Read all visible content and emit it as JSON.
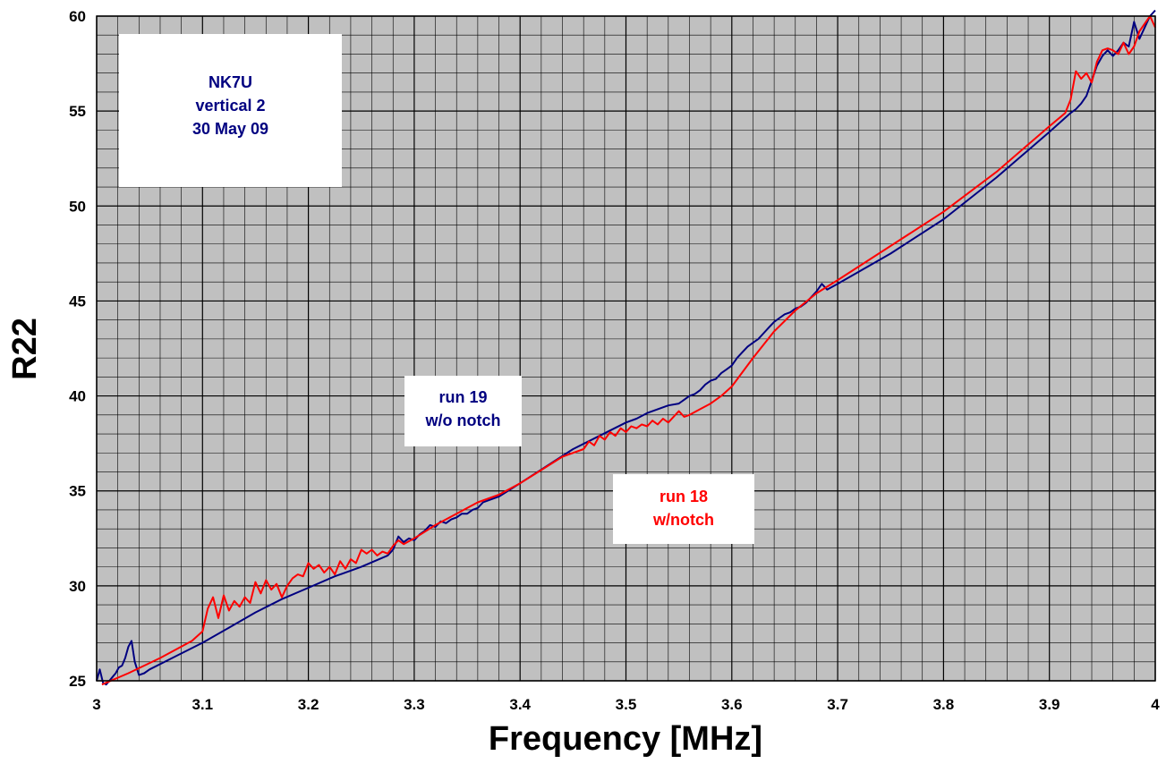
{
  "chart_data": {
    "type": "line",
    "title": "",
    "xlabel": "Frequency [MHz]",
    "ylabel": "R22",
    "xlim": [
      3,
      4
    ],
    "ylim": [
      25,
      60
    ],
    "x_ticks": [
      "3",
      "3.1",
      "3.2",
      "3.3",
      "3.4",
      "3.5",
      "3.6",
      "3.7",
      "3.8",
      "3.9",
      "4"
    ],
    "y_ticks": [
      "25",
      "30",
      "35",
      "40",
      "45",
      "50",
      "55",
      "60"
    ],
    "grid": true,
    "background": "#c0c0c0",
    "annotations": [
      {
        "lines": [
          "NK7U",
          "vertical 2",
          "30 May 09"
        ],
        "color": "#000080"
      },
      {
        "lines": [
          "run 19",
          "w/o notch"
        ],
        "color": "#000080"
      },
      {
        "lines": [
          "run 18",
          "w/notch"
        ],
        "color": "#ff0000"
      }
    ],
    "series": [
      {
        "name": "run 19 w/o notch",
        "color": "#000080",
        "x": [
          3.0,
          3.003,
          3.006,
          3.009,
          3.012,
          3.015,
          3.018,
          3.021,
          3.024,
          3.027,
          3.03,
          3.033,
          3.036,
          3.04,
          3.045,
          3.05,
          3.075,
          3.1,
          3.125,
          3.15,
          3.175,
          3.2,
          3.225,
          3.25,
          3.275,
          3.28,
          3.285,
          3.29,
          3.295,
          3.3,
          3.305,
          3.31,
          3.315,
          3.32,
          3.325,
          3.33,
          3.335,
          3.34,
          3.345,
          3.35,
          3.355,
          3.36,
          3.365,
          3.37,
          3.38,
          3.4,
          3.425,
          3.45,
          3.475,
          3.5,
          3.51,
          3.52,
          3.525,
          3.53,
          3.54,
          3.55,
          3.555,
          3.56,
          3.565,
          3.57,
          3.575,
          3.58,
          3.585,
          3.59,
          3.595,
          3.6,
          3.605,
          3.61,
          3.615,
          3.62,
          3.625,
          3.63,
          3.635,
          3.64,
          3.645,
          3.65,
          3.655,
          3.66,
          3.665,
          3.67,
          3.675,
          3.68,
          3.685,
          3.69,
          3.7,
          3.75,
          3.8,
          3.85,
          3.9,
          3.92,
          3.925,
          3.93,
          3.935,
          3.94,
          3.945,
          3.95,
          3.955,
          3.96,
          3.965,
          3.97,
          3.975,
          3.98,
          3.985,
          3.99,
          3.995,
          4.0
        ],
        "y": [
          25.0,
          25.6,
          24.9,
          24.8,
          25.0,
          25.2,
          25.4,
          25.7,
          25.8,
          26.2,
          26.8,
          27.1,
          26.0,
          25.3,
          25.4,
          25.6,
          26.3,
          27.0,
          27.8,
          28.6,
          29.3,
          29.9,
          30.5,
          31.0,
          31.6,
          31.9,
          32.6,
          32.3,
          32.5,
          32.4,
          32.7,
          32.9,
          33.2,
          33.1,
          33.4,
          33.3,
          33.5,
          33.6,
          33.8,
          33.8,
          34.0,
          34.1,
          34.4,
          34.5,
          34.7,
          35.4,
          36.3,
          37.2,
          37.9,
          38.6,
          38.8,
          39.1,
          39.2,
          39.3,
          39.5,
          39.6,
          39.8,
          40.0,
          40.1,
          40.3,
          40.6,
          40.8,
          40.9,
          41.2,
          41.4,
          41.6,
          42.0,
          42.3,
          42.6,
          42.8,
          43.0,
          43.3,
          43.6,
          43.9,
          44.1,
          44.3,
          44.4,
          44.6,
          44.7,
          44.9,
          45.2,
          45.5,
          45.9,
          45.6,
          45.9,
          47.5,
          49.3,
          51.5,
          53.9,
          54.9,
          55.1,
          55.4,
          55.8,
          56.6,
          57.4,
          57.9,
          58.2,
          57.9,
          58.2,
          58.6,
          58.4,
          59.7,
          58.8,
          59.4,
          60.0,
          60.3
        ]
      },
      {
        "name": "run 18 w/notch",
        "color": "#ff0000",
        "x": [
          3.005,
          3.03,
          3.06,
          3.09,
          3.1,
          3.105,
          3.11,
          3.115,
          3.12,
          3.125,
          3.13,
          3.135,
          3.14,
          3.145,
          3.15,
          3.155,
          3.16,
          3.165,
          3.17,
          3.175,
          3.18,
          3.185,
          3.19,
          3.195,
          3.2,
          3.205,
          3.21,
          3.215,
          3.22,
          3.225,
          3.23,
          3.235,
          3.24,
          3.245,
          3.25,
          3.255,
          3.26,
          3.265,
          3.27,
          3.275,
          3.28,
          3.285,
          3.29,
          3.3,
          3.32,
          3.34,
          3.36,
          3.38,
          3.4,
          3.42,
          3.44,
          3.46,
          3.465,
          3.47,
          3.475,
          3.48,
          3.485,
          3.49,
          3.495,
          3.5,
          3.505,
          3.51,
          3.515,
          3.52,
          3.525,
          3.53,
          3.535,
          3.54,
          3.545,
          3.55,
          3.555,
          3.56,
          3.57,
          3.58,
          3.59,
          3.6,
          3.62,
          3.64,
          3.66,
          3.68,
          3.7,
          3.75,
          3.8,
          3.85,
          3.9,
          3.915,
          3.92,
          3.925,
          3.93,
          3.935,
          3.94,
          3.945,
          3.95,
          3.955,
          3.96,
          3.965,
          3.97,
          3.975,
          3.98,
          3.985,
          3.99,
          3.995,
          4.0
        ],
        "y": [
          24.8,
          25.4,
          26.2,
          27.1,
          27.6,
          28.8,
          29.4,
          28.3,
          29.5,
          28.7,
          29.2,
          28.9,
          29.4,
          29.1,
          30.2,
          29.6,
          30.3,
          29.8,
          30.1,
          29.4,
          30.0,
          30.4,
          30.6,
          30.5,
          31.2,
          30.9,
          31.1,
          30.7,
          31.0,
          30.6,
          31.3,
          30.9,
          31.4,
          31.2,
          31.9,
          31.7,
          31.9,
          31.6,
          31.8,
          31.7,
          32.1,
          32.4,
          32.2,
          32.5,
          33.2,
          33.8,
          34.4,
          34.8,
          35.4,
          36.1,
          36.8,
          37.2,
          37.6,
          37.4,
          37.9,
          37.7,
          38.1,
          37.9,
          38.3,
          38.1,
          38.4,
          38.3,
          38.5,
          38.4,
          38.7,
          38.5,
          38.8,
          38.6,
          38.9,
          39.2,
          38.9,
          39.0,
          39.3,
          39.6,
          40.0,
          40.5,
          42.0,
          43.4,
          44.5,
          45.4,
          46.1,
          47.9,
          49.7,
          51.8,
          54.2,
          54.9,
          55.6,
          57.1,
          56.7,
          57.0,
          56.5,
          57.6,
          58.2,
          58.3,
          58.2,
          58.0,
          58.6,
          58.0,
          58.4,
          59.2,
          59.6,
          60.0,
          59.4
        ]
      }
    ]
  }
}
